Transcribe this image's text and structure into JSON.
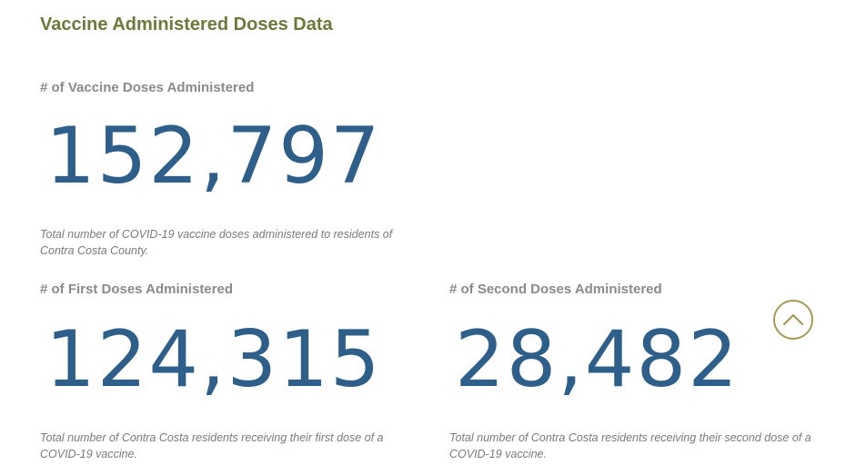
{
  "page": {
    "title": "Vaccine Administered Doses Data"
  },
  "stats": {
    "total": {
      "label": "# of Vaccine Doses Administered",
      "value": "152,797",
      "description": "Total number of COVID-19 vaccine doses administered to residents of Contra Costa County."
    },
    "first": {
      "label": "# of First Doses Administered",
      "value": "124,315",
      "description": "Total number of Contra Costa residents receiving their first dose of a COVID-19 vaccine."
    },
    "second": {
      "label": "# of Second Doses Administered",
      "value": "28,482",
      "description": "Total number of Contra Costa residents receiving their second dose of a COVID-19 vaccine."
    }
  },
  "scroll_top": {
    "icon": "chevron-up-icon",
    "color": "#a59a55"
  },
  "colors": {
    "title": "#6b7a3a",
    "value": "#2e5f8a",
    "label": "#8a8a8a"
  }
}
